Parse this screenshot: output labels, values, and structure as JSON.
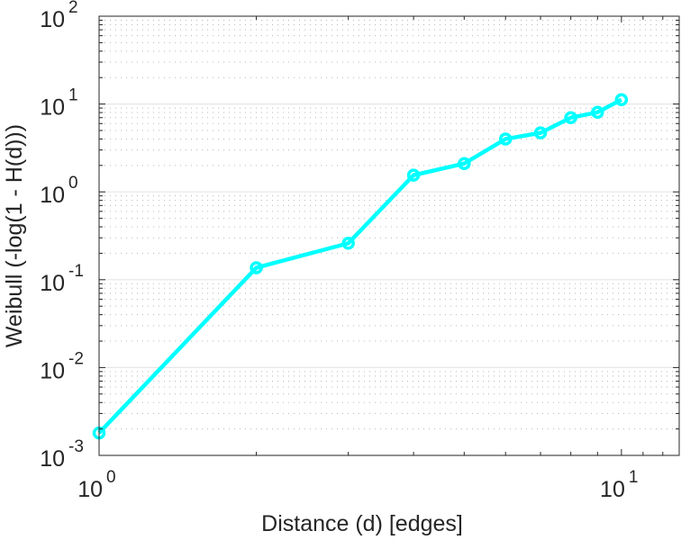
{
  "chart_data": {
    "type": "line",
    "title": "",
    "xlabel": "Distance (d) [edges]",
    "ylabel": "Weibull (-log(1 - H(d)))",
    "xscale": "log",
    "yscale": "log",
    "xlim": [
      1,
      12.9
    ],
    "ylim": [
      0.001,
      100
    ],
    "grid": "y major and minor",
    "legend": "none",
    "x_ticks": [
      {
        "base": "10",
        "exp": "0",
        "value": 1
      },
      {
        "base": "10",
        "exp": "1",
        "value": 10
      }
    ],
    "y_ticks": [
      {
        "base": "10",
        "exp": "-3",
        "value": 0.001
      },
      {
        "base": "10",
        "exp": "-2",
        "value": 0.01
      },
      {
        "base": "10",
        "exp": "-1",
        "value": 0.1
      },
      {
        "base": "10",
        "exp": "0",
        "value": 1
      },
      {
        "base": "10",
        "exp": "1",
        "value": 10
      },
      {
        "base": "10",
        "exp": "2",
        "value": 100
      }
    ],
    "series": [
      {
        "name": "weibull",
        "color": "#00ffff",
        "x": [
          1,
          2,
          3,
          4,
          5,
          6,
          7,
          8,
          9,
          10
        ],
        "y": [
          0.0018,
          0.137,
          0.26,
          1.55,
          2.1,
          4.0,
          4.7,
          7.0,
          8.05,
          11.2
        ]
      }
    ]
  }
}
